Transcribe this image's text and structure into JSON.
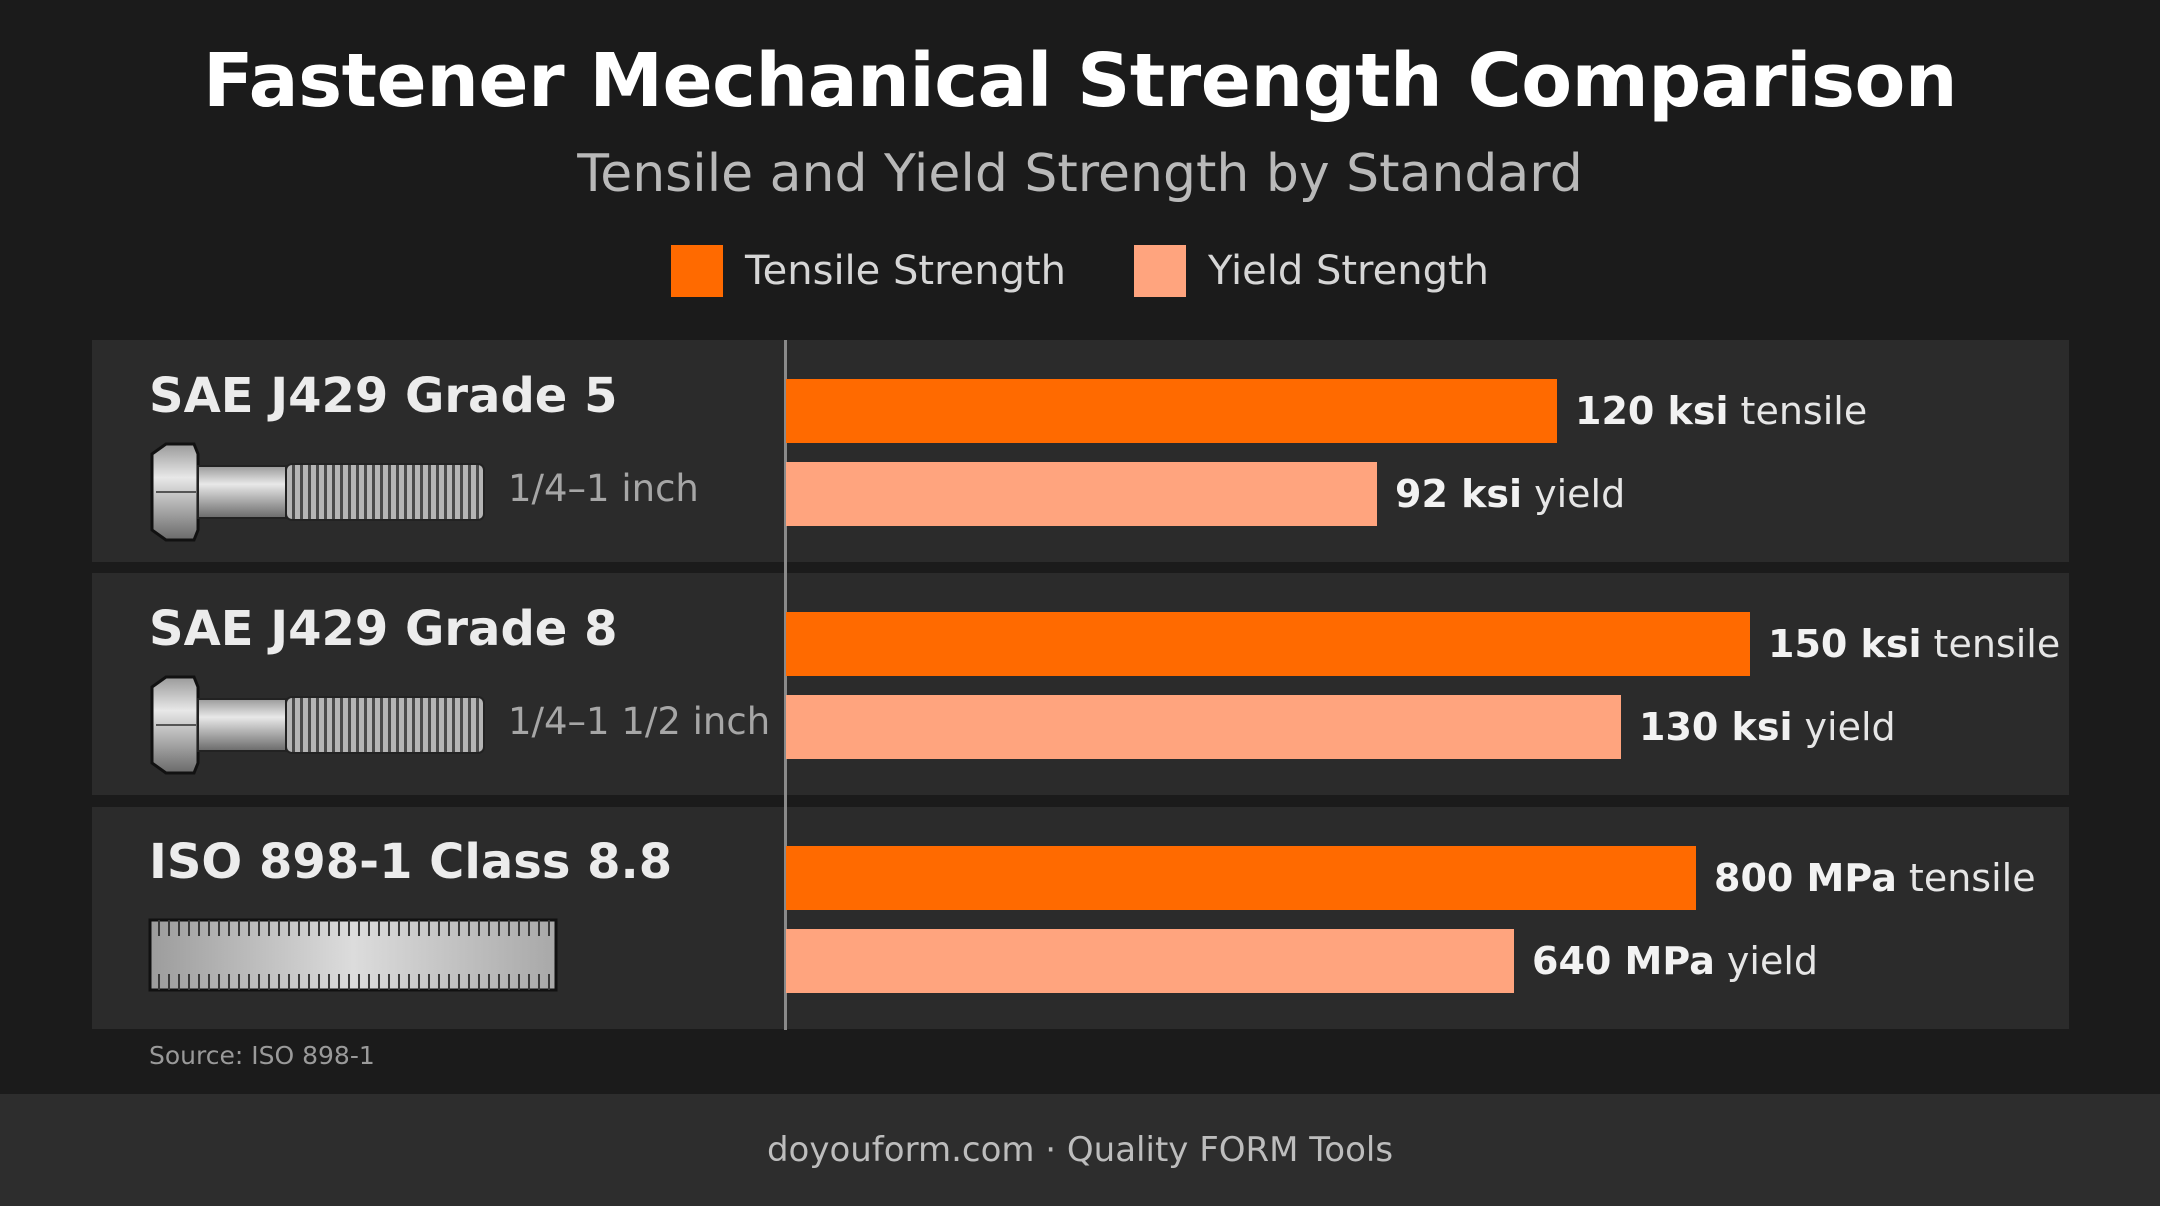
{
  "title": "Fastener Mechanical Strength Comparison",
  "subtitle": "Tensile and Yield Strength by Standard",
  "legend": [
    {
      "label": "Tensile Strength",
      "color": "#ff6a00"
    },
    {
      "label": "Yield Strength",
      "color": "#ffa47e"
    }
  ],
  "source": "Source: ISO 898-1",
  "footer": "doyouform.com · Quality FORM Tools",
  "chart_data": {
    "type": "bar",
    "orientation": "horizontal",
    "categories": [
      "SAE J429 Grade 5",
      "SAE J429 Grade 8",
      "ISO 898-1 Class 8.8"
    ],
    "category_notes": [
      "1/4–1 inch",
      "1/4–1 1/2 inch",
      ""
    ],
    "series": [
      {
        "name": "Tensile Strength",
        "color": "#ff6a00",
        "values": [
          120,
          150,
          800
        ],
        "units": [
          "ksi",
          "ksi",
          "MPa"
        ],
        "suffix": "tensile"
      },
      {
        "name": "Yield Strength",
        "color": "#ffa47e",
        "values": [
          92,
          130,
          640
        ],
        "units": [
          "ksi",
          "ksi",
          "MPa"
        ],
        "suffix": "yield"
      }
    ],
    "legend_position": "top-center",
    "grid": false
  }
}
